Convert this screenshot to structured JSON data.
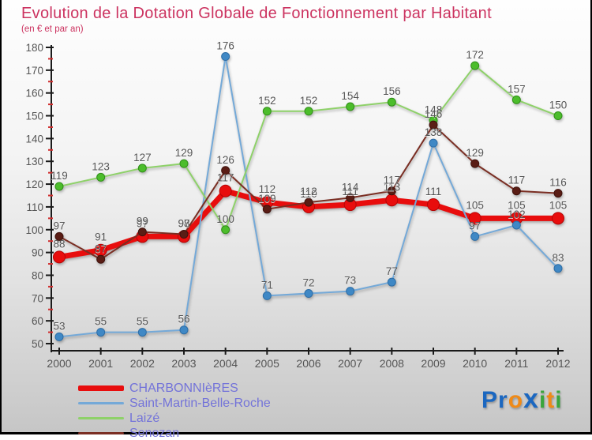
{
  "title": "Evolution de la Dotation Globale de Fonctionnement par Habitant",
  "subtitle": "(en € et par an)",
  "chart_data": {
    "type": "line",
    "x": [
      2000,
      2001,
      2002,
      2003,
      2004,
      2005,
      2006,
      2007,
      2008,
      2009,
      2010,
      2011,
      2012
    ],
    "xlabel": "",
    "ylabel": "",
    "ylim": [
      50,
      180
    ],
    "ytick_step": 10,
    "grid": false,
    "legend_position": "bottom-left",
    "series": [
      {
        "name": "CHARBONNIèRES",
        "color": "#e80d0d",
        "point_color": "#e80d0d",
        "point_edge": "#b50505",
        "line_width": 7,
        "point_radius": 7.5,
        "label_dy": -12,
        "values": [
          88,
          91,
          97,
          97,
          117,
          112,
          110,
          111,
          113,
          111,
          105,
          105,
          105
        ]
      },
      {
        "name": "Saint-Martin-Belle-Roche",
        "color": "#74a9d8",
        "point_color": "#3f88c5",
        "point_edge": "#2d6da6",
        "line_width": 2,
        "point_radius": 5,
        "label_dy": -9,
        "values": [
          53,
          55,
          55,
          56,
          176,
          71,
          72,
          73,
          77,
          138,
          97,
          102,
          83
        ]
      },
      {
        "name": "Laizé",
        "color": "#8ed169",
        "point_color": "#4cbd2b",
        "point_edge": "#2f8f17",
        "line_width": 2,
        "point_radius": 5,
        "label_dy": -9,
        "values": [
          119,
          123,
          127,
          129,
          100,
          152,
          152,
          154,
          156,
          148,
          172,
          157,
          150
        ]
      },
      {
        "name": "Senozan",
        "color": "#7a2e23",
        "point_color": "#5a1d15",
        "point_edge": "#3f120c",
        "line_width": 2,
        "point_radius": 5,
        "label_dy": -9,
        "values": [
          97,
          87,
          99,
          98,
          126,
          109,
          112,
          114,
          117,
          146,
          129,
          117,
          116
        ]
      }
    ]
  },
  "axis_style": {
    "axis_color": "#1a1a1a",
    "minor_tick_color": "#d03030",
    "text_color": "#555555"
  },
  "logo": {
    "letters": [
      {
        "ch": "P",
        "color": "#1b67c0",
        "big": false
      },
      {
        "ch": "r",
        "color": "#1b67c0",
        "big": false
      },
      {
        "ch": "o",
        "color": "#ef8a17",
        "big": false
      },
      {
        "ch": "x",
        "color": "#1b67c0",
        "big": true
      },
      {
        "ch": "i",
        "color": "#3aa53c",
        "big": false
      },
      {
        "ch": "t",
        "color": "#ef8a17",
        "big": false
      },
      {
        "ch": "i",
        "color": "#3aa53c",
        "big": false
      }
    ]
  }
}
